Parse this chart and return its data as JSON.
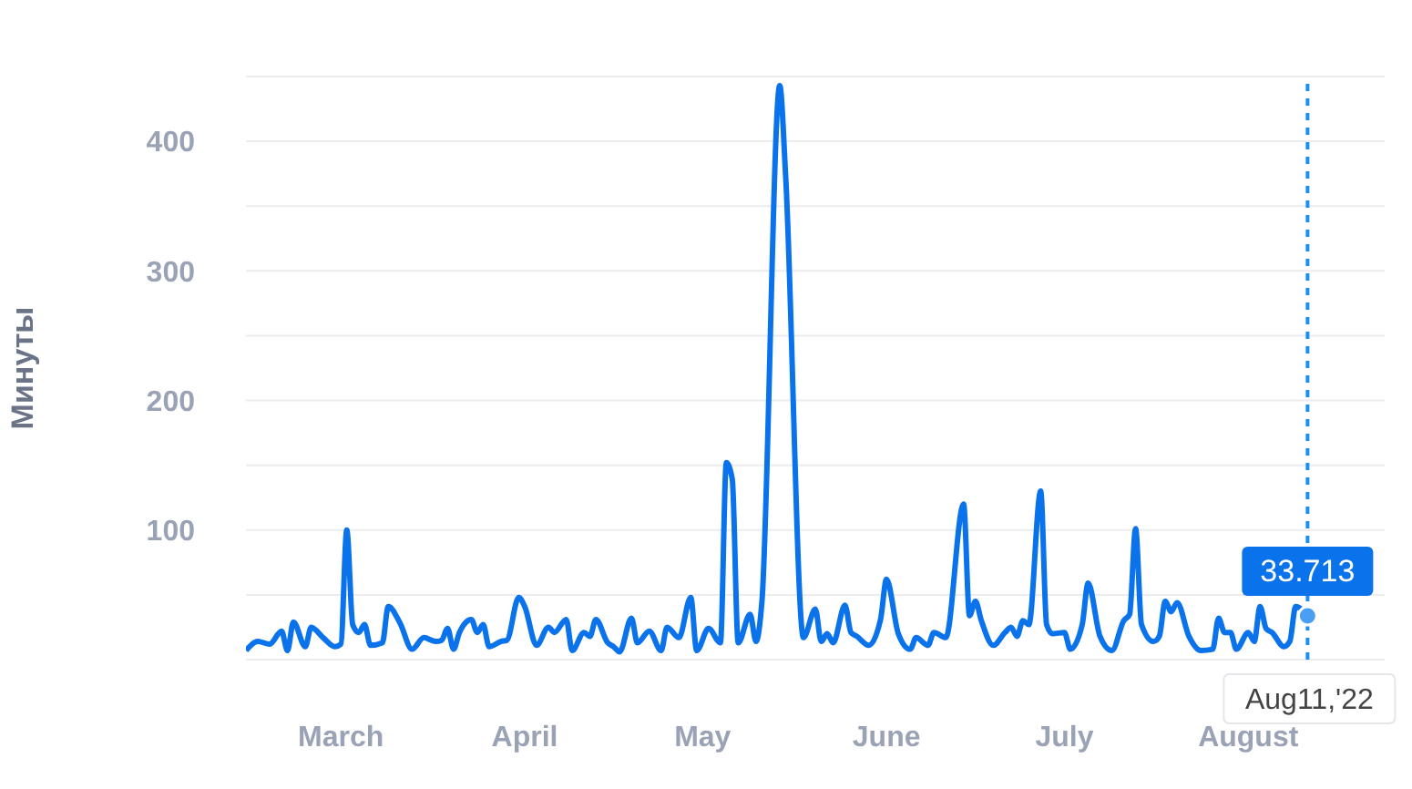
{
  "chart_data": {
    "type": "line",
    "ylabel": "Минуты",
    "x": [
      "2022-02-13",
      "2022-02-15",
      "2022-02-17",
      "2022-02-19",
      "2022-02-20",
      "2022-02-21",
      "2022-02-23",
      "2022-02-24",
      "2022-02-26",
      "2022-02-28",
      "2022-03-01",
      "2022-03-02",
      "2022-03-03",
      "2022-03-04",
      "2022-03-05",
      "2022-03-06",
      "2022-03-08",
      "2022-03-09",
      "2022-03-11",
      "2022-03-13",
      "2022-03-15",
      "2022-03-17",
      "2022-03-18",
      "2022-03-19",
      "2022-03-20",
      "2022-03-21",
      "2022-03-23",
      "2022-03-24",
      "2022-03-25",
      "2022-03-26",
      "2022-03-28",
      "2022-03-29",
      "2022-03-31",
      "2022-04-01",
      "2022-04-03",
      "2022-04-05",
      "2022-04-06",
      "2022-04-08",
      "2022-04-09",
      "2022-04-11",
      "2022-04-12",
      "2022-04-13",
      "2022-04-15",
      "2022-04-16",
      "2022-04-17",
      "2022-04-19",
      "2022-04-20",
      "2022-04-22",
      "2022-04-24",
      "2022-04-25",
      "2022-04-27",
      "2022-04-29",
      "2022-04-30",
      "2022-05-02",
      "2022-05-04",
      "2022-05-05",
      "2022-05-06",
      "2022-05-07",
      "2022-05-09",
      "2022-05-10",
      "2022-05-11",
      "2022-05-14",
      "2022-05-15",
      "2022-05-18",
      "2022-05-20",
      "2022-05-21",
      "2022-05-22",
      "2022-05-23",
      "2022-05-25",
      "2022-05-26",
      "2022-05-27",
      "2022-05-29",
      "2022-05-31",
      "2022-06-01",
      "2022-06-03",
      "2022-06-05",
      "2022-06-06",
      "2022-06-08",
      "2022-06-09",
      "2022-06-11",
      "2022-06-14",
      "2022-06-15",
      "2022-06-16",
      "2022-06-17",
      "2022-06-19",
      "2022-06-21",
      "2022-06-22",
      "2022-06-23",
      "2022-06-24",
      "2022-06-25",
      "2022-06-27",
      "2022-06-28",
      "2022-06-29",
      "2022-07-01",
      "2022-07-02",
      "2022-07-04",
      "2022-07-05",
      "2022-07-07",
      "2022-07-09",
      "2022-07-11",
      "2022-07-12",
      "2022-07-13",
      "2022-07-14",
      "2022-07-16",
      "2022-07-17",
      "2022-07-18",
      "2022-07-19",
      "2022-07-20",
      "2022-07-22",
      "2022-07-24",
      "2022-07-26",
      "2022-07-27",
      "2022-07-28",
      "2022-07-29",
      "2022-07-30",
      "2022-08-01",
      "2022-08-02",
      "2022-08-03",
      "2022-08-04",
      "2022-08-05",
      "2022-08-07",
      "2022-08-08",
      "2022-08-09",
      "2022-08-11"
    ],
    "series": [
      {
        "color": "#0a73eb",
        "values": [
          7,
          14,
          12,
          22,
          7,
          29,
          10,
          25,
          17,
          10,
          12,
          100,
          27,
          21,
          27,
          11,
          13,
          41,
          28,
          8,
          17,
          14,
          15,
          24,
          8,
          21,
          31,
          21,
          27,
          10,
          14,
          15,
          48,
          41,
          11,
          25,
          21,
          31,
          7,
          21,
          18,
          31,
          13,
          10,
          6,
          32,
          13,
          22,
          7,
          25,
          17,
          48,
          7,
          24,
          13,
          152,
          139,
          13,
          35,
          14,
          45,
          443,
          373,
          17,
          39,
          14,
          20,
          13,
          42,
          21,
          18,
          11,
          31,
          62,
          20,
          8,
          17,
          11,
          21,
          17,
          120,
          34,
          45,
          30,
          11,
          21,
          25,
          18,
          30,
          27,
          130,
          27,
          20,
          21,
          8,
          27,
          59,
          18,
          7,
          30,
          35,
          101,
          27,
          14,
          18,
          45,
          37,
          44,
          18,
          7,
          8,
          32,
          21,
          21,
          8,
          21,
          14,
          41,
          24,
          21,
          10,
          14,
          41,
          33.713
        ]
      }
    ],
    "xlim": [
      "2022-02-13",
      "2022-08-24"
    ],
    "xticks": [
      {
        "value": "2022-03-01",
        "label": "March"
      },
      {
        "value": "2022-04-01",
        "label": "April"
      },
      {
        "value": "2022-05-01",
        "label": "May"
      },
      {
        "value": "2022-06-01",
        "label": "June"
      },
      {
        "value": "2022-07-01",
        "label": "July"
      },
      {
        "value": "2022-08-01",
        "label": "August"
      }
    ],
    "ylim": [
      0,
      450
    ],
    "yticks": [
      {
        "value": 0,
        "label": null
      },
      {
        "value": 50,
        "label": null
      },
      100,
      {
        "value": 150,
        "label": null
      },
      200,
      {
        "value": 250,
        "label": null
      },
      300,
      {
        "value": 350,
        "label": null
      },
      400,
      {
        "value": 450,
        "label": null
      }
    ],
    "grid": "y",
    "legend": false,
    "marker": "none",
    "line_style": "solid",
    "ref_lines": [
      {
        "axis": "x",
        "value": "2022-08-11",
        "color": "#1a8cff",
        "line_style": "dashed"
      }
    ],
    "annotations": [
      {
        "text": "33.713",
        "x": "2022-08-11",
        "y": 33.713
      },
      "Aug11,'22"
    ]
  }
}
